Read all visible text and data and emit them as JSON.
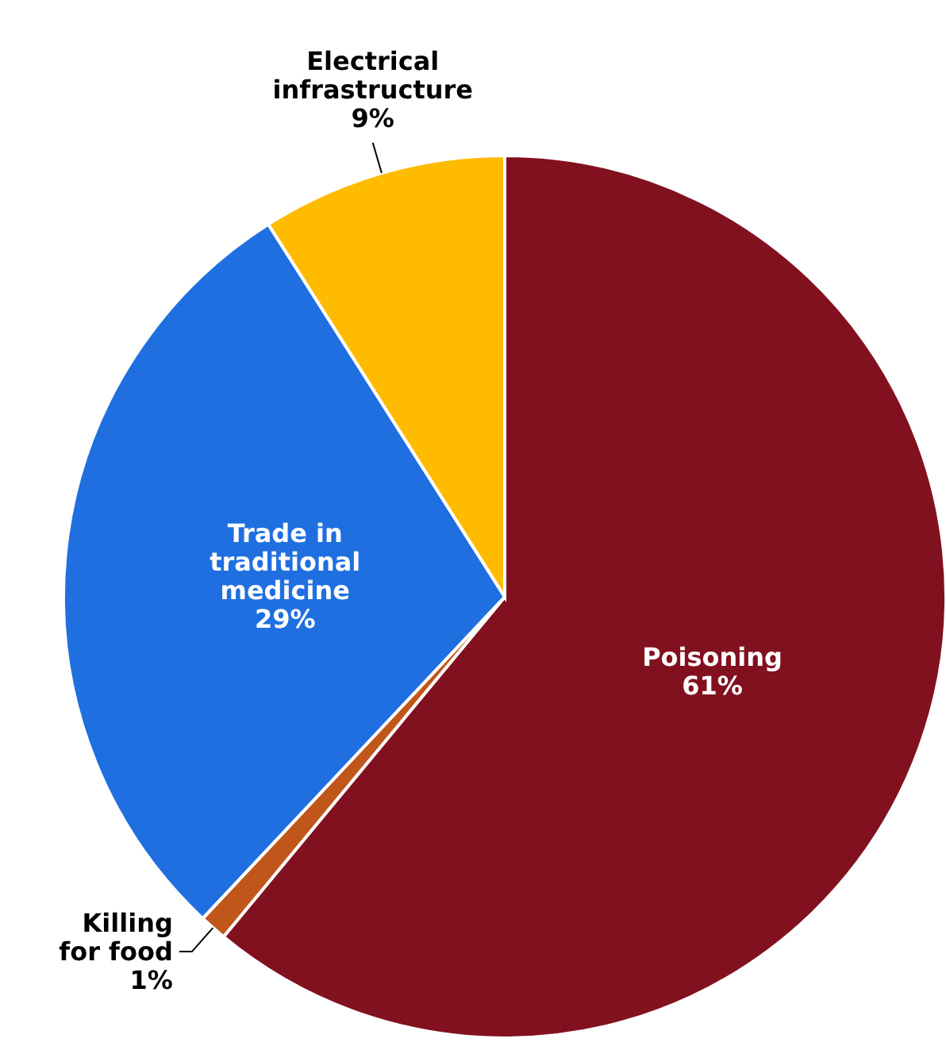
{
  "chart_data": {
    "type": "pie",
    "categories": [
      "Poisoning",
      "Killing for food",
      "Trade in traditional medicine",
      "Electrical infrastructure"
    ],
    "values": [
      61,
      1,
      29,
      9
    ],
    "colors": [
      "#82111f",
      "#c0561a",
      "#1f6fe0",
      "#ffbb00"
    ],
    "value_labels": [
      "61%",
      "1%",
      "29%",
      "9%"
    ]
  }
}
